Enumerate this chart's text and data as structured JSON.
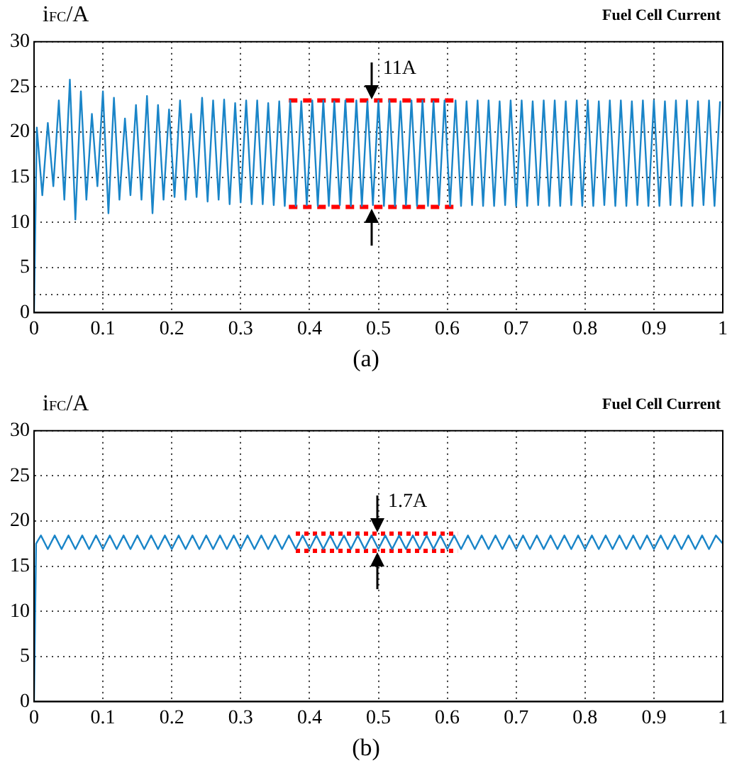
{
  "chart_data": [
    {
      "type": "line",
      "title": "Fuel Cell Current",
      "ylabel": "i$_{FC}$/A",
      "xlim": [
        0,
        1
      ],
      "ylim": [
        0,
        30
      ],
      "xticks": [
        0,
        0.1,
        0.2,
        0.3,
        0.4,
        0.5,
        0.6,
        0.7,
        0.8,
        0.9,
        1
      ],
      "yticks": [
        0,
        5,
        10,
        15,
        20,
        25,
        30
      ],
      "grid": true,
      "ref_lines": [
        {
          "axis": "y",
          "value": 2,
          "color": "#000000",
          "line_style": "dotted"
        }
      ],
      "annotations": [
        "11A",
        "(a)"
      ],
      "series": [
        {
          "color": "#1a85c8",
          "x": [
            0,
            0.004,
            0.012,
            0.02,
            0.028,
            0.036,
            0.044,
            0.052,
            0.06,
            0.068,
            0.076,
            0.084,
            0.092,
            0.1,
            0.108,
            0.116,
            0.124,
            0.132,
            0.14,
            0.148,
            0.156,
            0.164,
            0.172,
            0.18,
            0.188,
            0.196,
            0.204,
            0.212,
            0.22,
            0.228,
            0.236,
            0.244,
            0.252,
            0.26,
            0.268,
            0.276,
            0.284,
            0.292,
            0.3,
            0.308,
            0.316,
            0.324,
            0.332,
            0.34,
            0.348,
            0.356,
            0.364,
            0.372,
            0.38,
            0.388,
            0.396,
            0.404,
            0.412,
            0.42,
            0.428,
            0.436,
            0.444,
            0.452,
            0.46,
            0.468,
            0.476,
            0.484,
            0.492,
            0.5,
            0.508,
            0.516,
            0.524,
            0.532,
            0.54,
            0.548,
            0.556,
            0.564,
            0.572,
            0.58,
            0.588,
            0.596,
            0.604,
            0.612,
            0.62,
            0.628,
            0.636,
            0.644,
            0.652,
            0.66,
            0.668,
            0.676,
            0.684,
            0.692,
            0.7,
            0.708,
            0.716,
            0.724,
            0.732,
            0.74,
            0.748,
            0.756,
            0.764,
            0.772,
            0.78,
            0.788,
            0.796,
            0.804,
            0.812,
            0.82,
            0.828,
            0.836,
            0.844,
            0.852,
            0.86,
            0.868,
            0.876,
            0.884,
            0.892,
            0.9,
            0.908,
            0.916,
            0.924,
            0.932,
            0.94,
            0.948,
            0.956,
            0.964,
            0.972,
            0.98,
            0.988,
            0.996
          ],
          "values": [
            0,
            20.5,
            13,
            21,
            14,
            23.5,
            12.5,
            25.8,
            10.3,
            24.5,
            12.5,
            22,
            14,
            24.5,
            11,
            23.8,
            12.5,
            21.5,
            13,
            23,
            12.5,
            24,
            11,
            23,
            12.5,
            22.5,
            12.8,
            23.5,
            12.5,
            22,
            12.8,
            23.8,
            12.3,
            23.5,
            12.5,
            23.6,
            12,
            23.2,
            12.2,
            23.5,
            12,
            23.5,
            12,
            23.2,
            11.9,
            23.4,
            11.8,
            23.5,
            11.8,
            23.4,
            11.9,
            23.5,
            11.8,
            23.5,
            11.8,
            23.4,
            11.9,
            23.5,
            11.8,
            23.5,
            11.8,
            23.4,
            11.9,
            23.5,
            11.8,
            23.5,
            11.8,
            23.4,
            11.9,
            23.5,
            11.8,
            23.5,
            11.8,
            23.4,
            11.9,
            23.5,
            11.8,
            23.5,
            11.8,
            23.4,
            11.9,
            23.5,
            11.8,
            23.5,
            11.8,
            23.4,
            11.9,
            23.5,
            11.8,
            23.5,
            11.8,
            23.4,
            11.9,
            23.5,
            11.8,
            23.5,
            11.8,
            23.4,
            11.9,
            23.5,
            11.8,
            23.5,
            11.8,
            23.4,
            11.9,
            23.5,
            11.8,
            23.5,
            11.8,
            23.4,
            11.9,
            23.5,
            11.8,
            23.5,
            11.8,
            23.4,
            11.9,
            23.5,
            11.8,
            23.5,
            11.8,
            23.4,
            11.9,
            23.5,
            11.8,
            23.4
          ]
        },
        {
          "color": "#ff0000",
          "line_style": "dashed",
          "x": [
            0.37,
            0.61
          ],
          "values": [
            23.5,
            23.5
          ]
        },
        {
          "color": "#ff0000",
          "line_style": "dashed",
          "x": [
            0.37,
            0.61
          ],
          "values": [
            11.7,
            11.7
          ]
        }
      ]
    },
    {
      "type": "line",
      "title": "Fuel Cell Current",
      "ylabel": "i$_{FC}$/A",
      "xlim": [
        0,
        1
      ],
      "ylim": [
        0,
        30
      ],
      "xticks": [
        0,
        0.1,
        0.2,
        0.3,
        0.4,
        0.5,
        0.6,
        0.7,
        0.8,
        0.9,
        1
      ],
      "yticks": [
        0,
        5,
        10,
        15,
        20,
        25,
        30
      ],
      "grid": true,
      "annotations": [
        "1.7A",
        "(b)"
      ],
      "series": [
        {
          "color": "#1a85c8",
          "x": [
            0,
            0.003,
            0.01,
            0.02,
            0.03,
            0.04,
            0.05,
            0.06,
            0.07,
            0.08,
            0.09,
            0.1,
            0.11,
            0.12,
            0.13,
            0.14,
            0.15,
            0.16,
            0.17,
            0.18,
            0.19,
            0.2,
            0.21,
            0.22,
            0.23,
            0.24,
            0.25,
            0.26,
            0.27,
            0.28,
            0.29,
            0.3,
            0.31,
            0.32,
            0.33,
            0.34,
            0.35,
            0.36,
            0.37,
            0.38,
            0.39,
            0.4,
            0.41,
            0.42,
            0.43,
            0.44,
            0.45,
            0.46,
            0.47,
            0.48,
            0.49,
            0.5,
            0.51,
            0.52,
            0.53,
            0.54,
            0.55,
            0.56,
            0.57,
            0.58,
            0.59,
            0.6,
            0.61,
            0.62,
            0.63,
            0.64,
            0.65,
            0.66,
            0.67,
            0.68,
            0.69,
            0.7,
            0.71,
            0.72,
            0.73,
            0.74,
            0.75,
            0.76,
            0.77,
            0.78,
            0.79,
            0.8,
            0.81,
            0.82,
            0.83,
            0.84,
            0.85,
            0.86,
            0.87,
            0.88,
            0.89,
            0.9,
            0.91,
            0.92,
            0.93,
            0.94,
            0.95,
            0.96,
            0.97,
            0.98,
            0.99,
            1
          ],
          "values": [
            0,
            17.5,
            18.4,
            16.9,
            18.4,
            16.9,
            18.4,
            16.9,
            18.4,
            16.9,
            18.4,
            16.9,
            18.4,
            16.9,
            18.4,
            16.9,
            18.4,
            16.9,
            18.4,
            16.9,
            18.4,
            16.9,
            18.4,
            16.9,
            18.4,
            16.9,
            18.4,
            16.9,
            18.4,
            16.9,
            18.4,
            16.9,
            18.4,
            16.9,
            18.4,
            16.9,
            18.4,
            16.9,
            18.4,
            16.9,
            18.4,
            16.9,
            18.4,
            16.9,
            18.4,
            16.9,
            18.4,
            16.9,
            18.4,
            16.9,
            18.4,
            16.9,
            18.4,
            16.9,
            18.4,
            16.9,
            18.4,
            16.9,
            18.4,
            16.9,
            18.4,
            16.9,
            18.4,
            16.9,
            18.4,
            16.9,
            18.4,
            16.9,
            18.4,
            16.9,
            18.4,
            16.9,
            18.4,
            16.9,
            18.4,
            16.9,
            18.4,
            16.9,
            18.4,
            16.9,
            18.4,
            16.9,
            18.4,
            16.9,
            18.4,
            16.9,
            18.4,
            16.9,
            18.4,
            16.9,
            18.4,
            16.9,
            18.4,
            16.9,
            18.4,
            16.9,
            18.4,
            16.9,
            18.4,
            16.9,
            18.4,
            17.5
          ]
        },
        {
          "color": "#ff0000",
          "line_style": "dotted",
          "x": [
            0.38,
            0.615
          ],
          "values": [
            18.6,
            18.6
          ]
        },
        {
          "color": "#ff0000",
          "line_style": "dotted",
          "x": [
            0.38,
            0.615
          ],
          "values": [
            16.7,
            16.7
          ]
        }
      ]
    }
  ]
}
